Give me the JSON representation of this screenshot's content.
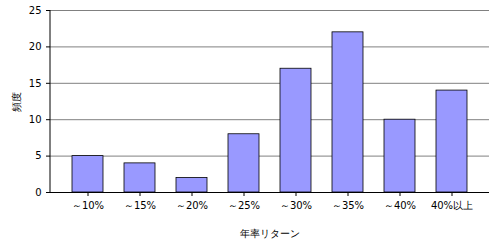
{
  "chart_data": {
    "type": "bar",
    "x_label": "年率リターン",
    "y_label": "頻度",
    "categories": [
      "～10%",
      "～15%",
      "～20%",
      "～25%",
      "～30%",
      "～35%",
      "～40%",
      "40%以上"
    ],
    "values": [
      5,
      4,
      2,
      8,
      17,
      22,
      10,
      14
    ],
    "color": "#9999ff",
    "ylim": [
      0,
      25
    ],
    "yticks": [
      0,
      5,
      10,
      15,
      20,
      25
    ],
    "grid": true
  }
}
